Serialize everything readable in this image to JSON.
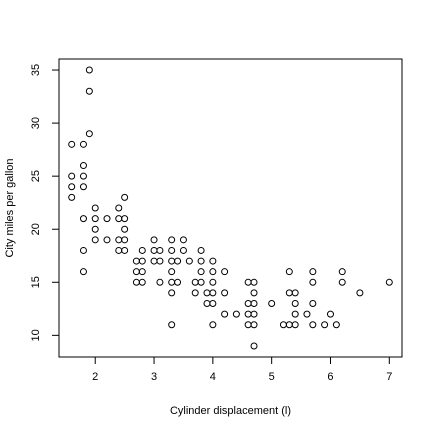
{
  "chart_data": {
    "type": "scatter",
    "title": "",
    "xlabel": "Cylinder displacement (l)",
    "ylabel": "City miles per gallon",
    "xlim": [
      1.6,
      7.0
    ],
    "ylim": [
      9,
      35
    ],
    "xticks": [
      2,
      3,
      4,
      5,
      6,
      7
    ],
    "yticks": [
      10,
      15,
      20,
      25,
      30,
      35
    ],
    "grid": false,
    "legend": "none",
    "marker": "open-circle",
    "points": [
      {
        "x": 1.6,
        "y": 28
      },
      {
        "x": 1.6,
        "y": 25
      },
      {
        "x": 1.6,
        "y": 24
      },
      {
        "x": 1.6,
        "y": 23
      },
      {
        "x": 1.8,
        "y": 28
      },
      {
        "x": 1.8,
        "y": 26
      },
      {
        "x": 1.8,
        "y": 25
      },
      {
        "x": 1.8,
        "y": 24
      },
      {
        "x": 1.8,
        "y": 21
      },
      {
        "x": 1.8,
        "y": 18
      },
      {
        "x": 1.8,
        "y": 16
      },
      {
        "x": 1.9,
        "y": 35
      },
      {
        "x": 1.9,
        "y": 33
      },
      {
        "x": 1.9,
        "y": 29
      },
      {
        "x": 2.0,
        "y": 22
      },
      {
        "x": 2.0,
        "y": 21
      },
      {
        "x": 2.0,
        "y": 20
      },
      {
        "x": 2.0,
        "y": 19
      },
      {
        "x": 2.2,
        "y": 21
      },
      {
        "x": 2.2,
        "y": 19
      },
      {
        "x": 2.4,
        "y": 22
      },
      {
        "x": 2.4,
        "y": 21
      },
      {
        "x": 2.4,
        "y": 19
      },
      {
        "x": 2.4,
        "y": 18
      },
      {
        "x": 2.5,
        "y": 23
      },
      {
        "x": 2.5,
        "y": 21
      },
      {
        "x": 2.5,
        "y": 20
      },
      {
        "x": 2.5,
        "y": 19
      },
      {
        "x": 2.5,
        "y": 18
      },
      {
        "x": 2.7,
        "y": 17
      },
      {
        "x": 2.7,
        "y": 16
      },
      {
        "x": 2.7,
        "y": 15
      },
      {
        "x": 2.8,
        "y": 18
      },
      {
        "x": 2.8,
        "y": 17
      },
      {
        "x": 2.8,
        "y": 16
      },
      {
        "x": 2.8,
        "y": 15
      },
      {
        "x": 3.0,
        "y": 19
      },
      {
        "x": 3.0,
        "y": 18
      },
      {
        "x": 3.0,
        "y": 17
      },
      {
        "x": 3.1,
        "y": 18
      },
      {
        "x": 3.1,
        "y": 17
      },
      {
        "x": 3.1,
        "y": 15
      },
      {
        "x": 3.3,
        "y": 19
      },
      {
        "x": 3.3,
        "y": 18
      },
      {
        "x": 3.3,
        "y": 17
      },
      {
        "x": 3.3,
        "y": 16
      },
      {
        "x": 3.3,
        "y": 15
      },
      {
        "x": 3.3,
        "y": 14
      },
      {
        "x": 3.3,
        "y": 11
      },
      {
        "x": 3.4,
        "y": 17
      },
      {
        "x": 3.4,
        "y": 15
      },
      {
        "x": 3.5,
        "y": 19
      },
      {
        "x": 3.5,
        "y": 18
      },
      {
        "x": 3.6,
        "y": 17
      },
      {
        "x": 3.7,
        "y": 15
      },
      {
        "x": 3.7,
        "y": 14
      },
      {
        "x": 3.8,
        "y": 18
      },
      {
        "x": 3.8,
        "y": 17
      },
      {
        "x": 3.8,
        "y": 16
      },
      {
        "x": 3.8,
        "y": 15
      },
      {
        "x": 3.9,
        "y": 14
      },
      {
        "x": 3.9,
        "y": 13
      },
      {
        "x": 4.0,
        "y": 17
      },
      {
        "x": 4.0,
        "y": 16
      },
      {
        "x": 4.0,
        "y": 15
      },
      {
        "x": 4.0,
        "y": 14
      },
      {
        "x": 4.0,
        "y": 13
      },
      {
        "x": 4.0,
        "y": 11
      },
      {
        "x": 4.2,
        "y": 16
      },
      {
        "x": 4.2,
        "y": 14
      },
      {
        "x": 4.2,
        "y": 12
      },
      {
        "x": 4.4,
        "y": 12
      },
      {
        "x": 4.6,
        "y": 15
      },
      {
        "x": 4.6,
        "y": 13
      },
      {
        "x": 4.6,
        "y": 12
      },
      {
        "x": 4.6,
        "y": 11
      },
      {
        "x": 4.7,
        "y": 15
      },
      {
        "x": 4.7,
        "y": 14
      },
      {
        "x": 4.7,
        "y": 13
      },
      {
        "x": 4.7,
        "y": 12
      },
      {
        "x": 4.7,
        "y": 11
      },
      {
        "x": 4.7,
        "y": 9
      },
      {
        "x": 5.0,
        "y": 13
      },
      {
        "x": 5.2,
        "y": 11
      },
      {
        "x": 5.3,
        "y": 16
      },
      {
        "x": 5.3,
        "y": 14
      },
      {
        "x": 5.3,
        "y": 11
      },
      {
        "x": 5.4,
        "y": 14
      },
      {
        "x": 5.4,
        "y": 13
      },
      {
        "x": 5.4,
        "y": 12
      },
      {
        "x": 5.4,
        "y": 11
      },
      {
        "x": 5.6,
        "y": 12
      },
      {
        "x": 5.7,
        "y": 16
      },
      {
        "x": 5.7,
        "y": 15
      },
      {
        "x": 5.7,
        "y": 13
      },
      {
        "x": 5.7,
        "y": 11
      },
      {
        "x": 5.9,
        "y": 11
      },
      {
        "x": 6.0,
        "y": 12
      },
      {
        "x": 6.1,
        "y": 11
      },
      {
        "x": 6.2,
        "y": 16
      },
      {
        "x": 6.2,
        "y": 15
      },
      {
        "x": 6.5,
        "y": 14
      },
      {
        "x": 7.0,
        "y": 15
      }
    ]
  }
}
